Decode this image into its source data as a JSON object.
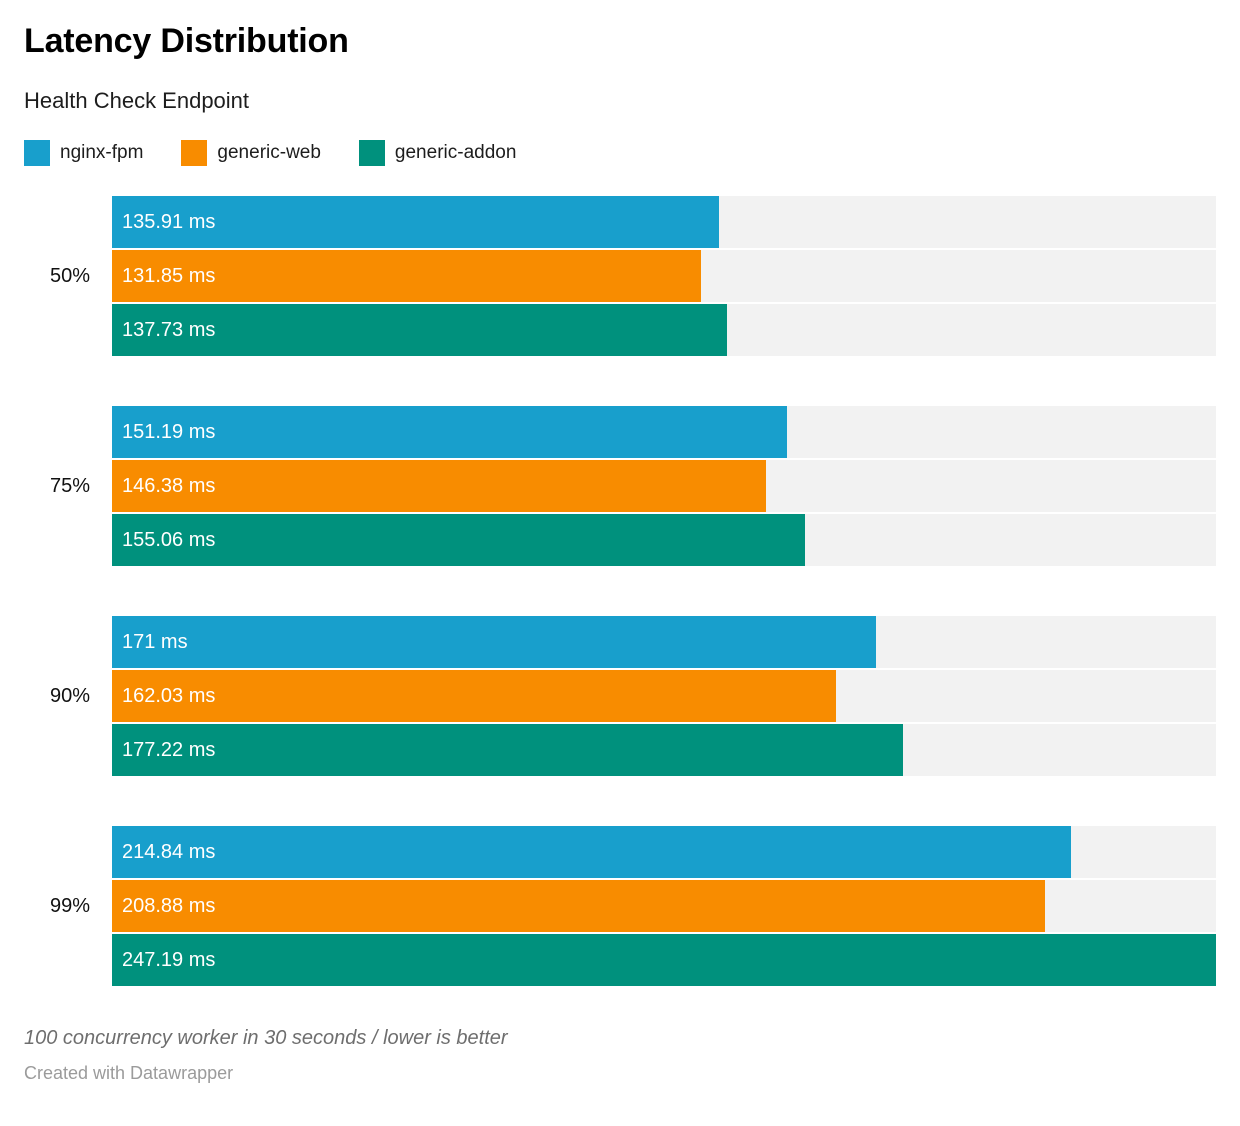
{
  "header": {
    "title": "Latency Distribution",
    "subtitle": "Health Check Endpoint"
  },
  "chart_data": {
    "type": "bar",
    "orientation": "horizontal",
    "title": "Latency Distribution",
    "subtitle": "Health Check Endpoint",
    "categories": [
      "50%",
      "75%",
      "90%",
      "99%"
    ],
    "series": [
      {
        "name": "nginx-fpm",
        "color": "#189fcc",
        "values": [
          135.91,
          151.19,
          171,
          214.84
        ],
        "labels": [
          "135.91 ms",
          "151.19 ms",
          "171 ms",
          "214.84 ms"
        ]
      },
      {
        "name": "generic-web",
        "color": "#f88c00",
        "values": [
          131.85,
          146.38,
          162.03,
          208.88
        ],
        "labels": [
          "131.85 ms",
          "146.38 ms",
          "162.03 ms",
          "208.88 ms"
        ]
      },
      {
        "name": "generic-addon",
        "color": "#00917d",
        "values": [
          137.73,
          155.06,
          177.22,
          247.19
        ],
        "labels": [
          "137.73 ms",
          "155.06 ms",
          "177.22 ms",
          "247.19 ms"
        ]
      }
    ],
    "unit": "ms",
    "xlim": [
      0,
      247.19
    ],
    "grid": false,
    "legend_position": "top",
    "track_color": "#f2f2f2",
    "value_labels_inside_bars": true
  },
  "footer": {
    "note": "100 concurrency worker in 30 seconds / lower is better",
    "credit": "Created with Datawrapper"
  }
}
